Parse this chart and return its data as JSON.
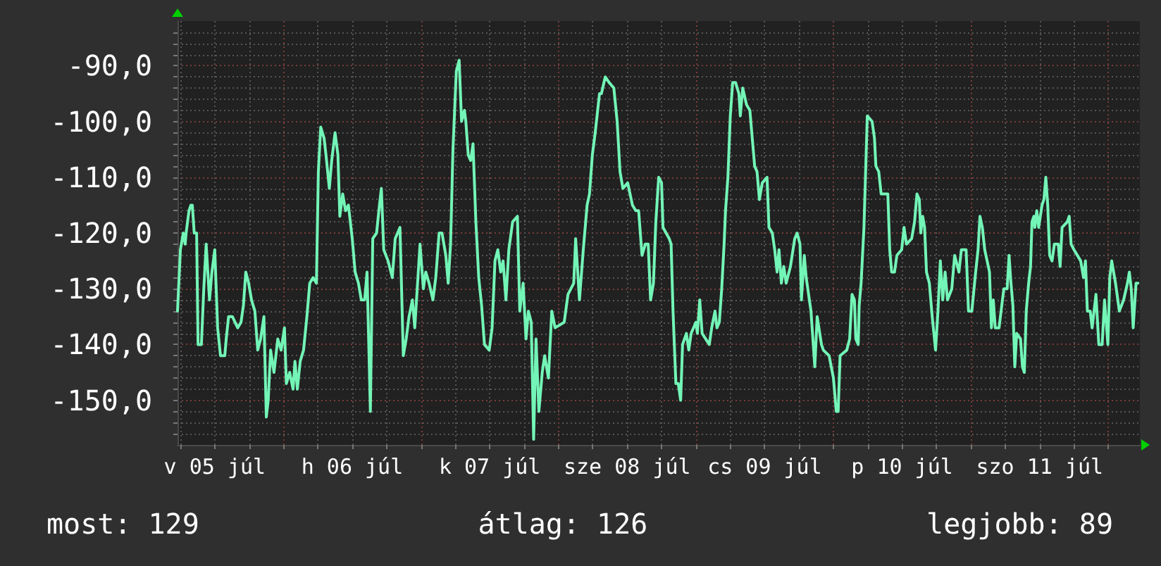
{
  "chart_data": {
    "type": "line",
    "color": "#73f5b7",
    "line_style": "solid",
    "grid": true,
    "xlim": [
      "--07-05T05:30",
      "--07-12T05:30"
    ],
    "ylim": [
      -158,
      -82
    ],
    "xticks": [
      {
        "value": "--07-05T06:00",
        "label": null
      },
      {
        "value": "--07-05T12:00",
        "label": "v 05 júl"
      },
      {
        "value": "--07-05T18:00",
        "label": null
      },
      {
        "value": "--07-06T00:00",
        "label": null
      },
      {
        "value": "--07-06T06:00",
        "label": null
      },
      {
        "value": "--07-06T12:00",
        "label": "h 06 júl"
      },
      {
        "value": "--07-06T18:00",
        "label": null
      },
      {
        "value": "--07-07T00:00",
        "label": null
      },
      {
        "value": "--07-07T06:00",
        "label": null
      },
      {
        "value": "--07-07T12:00",
        "label": "k 07 júl"
      },
      {
        "value": "--07-07T18:00",
        "label": null
      },
      {
        "value": "--07-08T00:00",
        "label": null
      },
      {
        "value": "--07-08T06:00",
        "label": null
      },
      {
        "value": "--07-08T12:00",
        "label": "sze 08 júl"
      },
      {
        "value": "--07-08T18:00",
        "label": null
      },
      {
        "value": "--07-09T00:00",
        "label": null
      },
      {
        "value": "--07-09T06:00",
        "label": null
      },
      {
        "value": "--07-09T12:00",
        "label": "cs 09 júl"
      },
      {
        "value": "--07-09T18:00",
        "label": null
      },
      {
        "value": "--07-10T00:00",
        "label": null
      },
      {
        "value": "--07-10T06:00",
        "label": null
      },
      {
        "value": "--07-10T12:00",
        "label": "p 10 júl"
      },
      {
        "value": "--07-10T18:00",
        "label": null
      },
      {
        "value": "--07-11T00:00",
        "label": null
      },
      {
        "value": "--07-11T06:00",
        "label": null
      },
      {
        "value": "--07-11T12:00",
        "label": "szo 11 júl"
      },
      {
        "value": "--07-11T18:00",
        "label": null
      },
      {
        "value": "--07-12T00:00",
        "label": null
      }
    ],
    "yticks": [
      {
        "value": -156,
        "label": null
      },
      {
        "value": -154,
        "label": null
      },
      {
        "value": -152,
        "label": null
      },
      {
        "value": -150,
        "label": "-150,0"
      },
      {
        "value": -148,
        "label": null
      },
      {
        "value": -146,
        "label": null
      },
      {
        "value": -144,
        "label": null
      },
      {
        "value": -142,
        "label": null
      },
      {
        "value": -140,
        "label": "-140,0"
      },
      {
        "value": -138,
        "label": null
      },
      {
        "value": -136,
        "label": null
      },
      {
        "value": -134,
        "label": null
      },
      {
        "value": -132,
        "label": null
      },
      {
        "value": -130,
        "label": "-130,0"
      },
      {
        "value": -128,
        "label": null
      },
      {
        "value": -126,
        "label": null
      },
      {
        "value": -124,
        "label": null
      },
      {
        "value": -122,
        "label": null
      },
      {
        "value": -120,
        "label": "-120,0"
      },
      {
        "value": -118,
        "label": null
      },
      {
        "value": -116,
        "label": null
      },
      {
        "value": -114,
        "label": null
      },
      {
        "value": -112,
        "label": null
      },
      {
        "value": -110,
        "label": "-110,0"
      },
      {
        "value": -108,
        "label": null
      },
      {
        "value": -106,
        "label": null
      },
      {
        "value": -104,
        "label": null
      },
      {
        "value": -102,
        "label": null
      },
      {
        "value": -100,
        "label": "-100,0"
      },
      {
        "value": -98,
        "label": null
      },
      {
        "value": -96,
        "label": null
      },
      {
        "value": -94,
        "label": null
      },
      {
        "value": -92,
        "label": null
      },
      {
        "value": -90,
        "label": "-90,0"
      },
      {
        "value": -88,
        "label": null
      },
      {
        "value": -86,
        "label": null
      },
      {
        "value": -84,
        "label": null
      }
    ],
    "x": [
      "--07-05T05:30",
      "--07-05T06:00",
      "--07-05T06:30",
      "--07-05T06:50",
      "--07-05T07:00",
      "--07-05T07:30",
      "--07-05T07:50",
      "--07-05T08:05",
      "--07-05T08:25",
      "--07-05T08:50",
      "--07-05T09:05",
      "--07-05T09:40",
      "--07-05T10:05",
      "--07-05T10:30",
      "--07-05T11:05",
      "--07-05T11:30",
      "--07-05T12:00",
      "--07-05T12:30",
      "--07-05T13:00",
      "--07-05T13:45",
      "--07-05T14:00",
      "--07-05T14:25",
      "--07-05T15:05",
      "--07-05T16:00",
      "--07-05T16:35",
      "--07-05T17:00",
      "--07-05T17:25",
      "--07-05T17:55",
      "--07-05T18:25",
      "--07-05T19:00",
      "--07-05T19:30",
      "--07-05T20:00",
      "--07-05T20:35",
      "--07-05T21:00",
      "--07-05T21:20",
      "--07-05T21:45",
      "--07-05T22:20",
      "--07-05T23:00",
      "--07-05T23:35",
      "--07-06T00:10",
      "--07-06T00:30",
      "--07-06T01:05",
      "--07-06T01:40",
      "--07-06T02:00",
      "--07-06T02:25",
      "--07-06T02:55",
      "--07-06T03:30",
      "--07-06T04:05",
      "--07-06T04:35",
      "--07-06T05:10",
      "--07-06T05:45",
      "--07-06T06:05",
      "--07-06T06:30",
      "--07-06T07:05",
      "--07-06T07:25",
      "--07-06T08:00",
      "--07-06T08:25",
      "--07-06T09:00",
      "--07-06T09:30",
      "--07-06T09:50",
      "--07-06T10:20",
      "--07-06T10:50",
      "--07-06T11:20",
      "--07-06T12:00",
      "--07-06T12:30",
      "--07-06T13:05",
      "--07-06T13:35",
      "--07-06T14:10",
      "--07-06T14:35",
      "--07-06T15:10",
      "--07-06T15:35",
      "--07-06T16:15",
      "--07-06T16:45",
      "--07-06T17:05",
      "--07-06T17:30",
      "--07-06T18:15",
      "--07-06T19:00",
      "--07-06T19:30",
      "--07-06T20:20",
      "--07-06T20:55",
      "--07-06T21:25",
      "--07-06T21:55",
      "--07-06T22:30",
      "--07-06T22:55",
      "--07-06T23:50",
      "--07-07T00:25",
      "--07-07T00:50",
      "--07-07T01:25",
      "--07-07T02:05",
      "--07-07T02:35",
      "--07-07T03:10",
      "--07-07T03:40",
      "--07-07T04:20",
      "--07-07T04:45",
      "--07-07T05:10",
      "--07-07T05:35",
      "--07-07T06:10",
      "--07-07T06:40",
      "--07-07T07:05",
      "--07-07T07:35",
      "--07-07T07:50",
      "--07-07T08:15",
      "--07-07T08:40",
      "--07-07T09:05",
      "--07-07T09:35",
      "--07-07T10:05",
      "--07-07T10:35",
      "--07-07T11:05",
      "--07-07T11:55",
      "--07-07T12:25",
      "--07-07T12:55",
      "--07-07T13:25",
      "--07-07T13:55",
      "--07-07T14:20",
      "--07-07T14:50",
      "--07-07T15:20",
      "--07-07T16:00",
      "--07-07T16:50",
      "--07-07T17:15",
      "--07-07T17:50",
      "--07-07T18:20",
      "--07-07T18:45",
      "--07-07T19:15",
      "--07-07T19:40",
      "--07-07T20:05",
      "--07-07T20:35",
      "--07-07T21:10",
      "--07-07T21:35",
      "--07-07T22:15",
      "--07-07T22:50",
      "--07-07T23:25",
      "--07-08T01:00",
      "--07-08T01:40",
      "--07-08T02:40",
      "--07-08T03:00",
      "--07-08T03:40",
      "--07-08T04:20",
      "--07-08T05:00",
      "--07-08T05:25",
      "--07-08T05:55",
      "--07-08T06:25",
      "--07-08T07:10",
      "--07-08T07:30",
      "--07-08T08:10",
      "--07-08T08:50",
      "--07-08T09:40",
      "--07-08T10:15",
      "--07-08T10:45",
      "--07-08T11:15",
      "--07-08T12:05",
      "--07-08T12:55",
      "--07-08T13:30",
      "--07-08T14:00",
      "--07-08T14:35",
      "--07-08T15:10",
      "--07-08T15:40",
      "--07-08T16:05",
      "--07-08T16:35",
      "--07-08T17:00",
      "--07-08T17:30",
      "--07-08T18:00",
      "--07-08T18:15",
      "--07-08T19:20",
      "--07-08T19:40",
      "--07-08T20:00",
      "--07-08T20:30",
      "--07-08T20:55",
      "--07-08T21:20",
      "--07-08T21:40",
      "--07-08T22:20",
      "--07-08T22:45",
      "--07-08T23:10",
      "--07-09T00:00",
      "--07-09T00:15",
      "--07-09T00:40",
      "--07-09T01:05",
      "--07-09T02:20",
      "--07-09T02:45",
      "--07-09T03:20",
      "--07-09T03:40",
      "--07-09T04:05",
      "--07-09T04:30",
      "--07-09T04:55",
      "--07-09T05:10",
      "--07-09T05:35",
      "--07-09T06:00",
      "--07-09T06:25",
      "--07-09T06:55",
      "--07-09T07:30",
      "--07-09T07:45",
      "--07-09T08:10",
      "--07-09T08:50",
      "--07-09T09:25",
      "--07-09T09:50",
      "--07-09T10:15",
      "--07-09T10:40",
      "--07-09T11:05",
      "--07-09T11:35",
      "--07-09T12:25",
      "--07-09T12:45",
      "--07-09T13:20",
      "--07-09T13:45",
      "--07-09T14:10",
      "--07-09T14:30",
      "--07-09T14:55",
      "--07-09T15:20",
      "--07-09T15:45",
      "--07-09T16:30",
      "--07-09T17:15",
      "--07-09T17:40",
      "--07-09T18:10",
      "--07-09T18:25",
      "--07-09T18:55",
      "--07-09T19:15",
      "--07-09T20:05",
      "--07-09T20:45",
      "--07-09T21:10",
      "--07-09T21:55",
      "--07-09T22:15",
      "--07-09T23:15",
      "--07-10T00:00",
      "--07-10T00:30",
      "--07-10T00:50",
      "--07-10T01:10",
      "--07-10T02:20",
      "--07-10T02:50",
      "--07-10T03:15",
      "--07-10T03:40",
      "--07-10T03:55",
      "--07-10T04:20",
      "--07-10T04:30",
      "--07-10T04:50",
      "--07-10T05:20",
      "--07-10T05:55",
      "--07-10T06:45",
      "--07-10T07:10",
      "--07-10T07:25",
      "--07-10T07:55",
      "--07-10T08:20",
      "--07-10T09:30",
      "--07-10T09:50",
      "--07-10T10:10",
      "--07-10T10:40",
      "--07-10T11:05",
      "--07-10T11:55",
      "--07-10T12:20",
      "--07-10T12:45",
      "--07-10T13:40",
      "--07-10T14:10",
      "--07-10T14:35",
      "--07-10T15:00",
      "--07-10T15:15",
      "--07-10T15:35",
      "--07-10T15:55",
      "--07-10T16:15",
      "--07-10T16:45",
      "--07-10T17:15",
      "--07-10T17:50",
      "--07-10T18:15",
      "--07-10T18:40",
      "--07-10T19:05",
      "--07-10T19:30",
      "--07-10T19:55",
      "--07-10T20:40",
      "--07-10T21:10",
      "--07-10T21:55",
      "--07-10T22:20",
      "--07-10T23:10",
      "--07-10T23:35",
      "--07-11T00:10",
      "--07-11T00:50",
      "--07-11T01:15",
      "--07-11T01:35",
      "--07-11T02:00",
      "--07-11T02:25",
      "--07-11T03:15",
      "--07-11T03:35",
      "--07-11T03:55",
      "--07-11T04:15",
      "--07-11T04:55",
      "--07-11T05:45",
      "--07-11T06:20",
      "--07-11T06:40",
      "--07-11T07:00",
      "--07-11T07:20",
      "--07-11T07:40",
      "--07-11T08:00",
      "--07-11T08:40",
      "--07-11T09:00",
      "--07-11T09:20",
      "--07-11T09:40",
      "--07-11T10:05",
      "--07-11T10:25",
      "--07-11T10:40",
      "--07-11T11:00",
      "--07-11T11:10",
      "--07-11T11:30",
      "--07-11T11:50",
      "--07-11T12:25",
      "--07-11T12:45",
      "--07-11T13:05",
      "--07-11T13:25",
      "--07-11T13:45",
      "--07-11T14:10",
      "--07-11T14:35",
      "--07-11T15:15",
      "--07-11T15:35",
      "--07-11T15:55",
      "--07-11T16:50",
      "--07-11T17:10",
      "--07-11T17:30",
      "--07-11T18:00",
      "--07-11T19:10",
      "--07-11T19:40",
      "--07-11T20:00",
      "--07-11T20:20",
      "--07-11T20:50",
      "--07-11T21:10",
      "--07-11T21:50",
      "--07-11T22:20",
      "--07-11T22:55",
      "--07-11T23:20",
      "--07-11T23:55",
      "--07-12T00:15",
      "--07-12T00:35",
      "--07-12T01:15",
      "--07-12T01:55",
      "--07-12T02:40",
      "--07-12T03:20",
      "--07-12T03:40",
      "--07-12T04:00",
      "--07-12T04:20",
      "--07-12T04:50",
      "--07-12T05:10"
    ],
    "values": [
      -134,
      -123,
      -120,
      -122,
      -120,
      -116,
      -115,
      -115,
      -120,
      -120,
      -140,
      -140,
      -130,
      -122,
      -132,
      -127,
      -123,
      -137,
      -142,
      -142,
      -139,
      -135,
      -135,
      -137,
      -136,
      -133,
      -127,
      -129,
      -132,
      -134,
      -141,
      -139,
      -135,
      -153,
      -150,
      -141,
      -145,
      -139,
      -141,
      -137,
      -147,
      -145,
      -148,
      -143,
      -148,
      -143,
      -141,
      -135,
      -129,
      -128,
      -129,
      -109,
      -101,
      -103,
      -106,
      -112,
      -107,
      -102,
      -106,
      -117,
      -113,
      -116,
      -115,
      -121,
      -127,
      -129,
      -132,
      -132,
      -127,
      -152,
      -121,
      -120,
      -115,
      -112,
      -123,
      -125,
      -128,
      -121,
      -119,
      -142,
      -139,
      -135,
      -132,
      -137,
      -122,
      -130,
      -127,
      -129,
      -132,
      -128,
      -120,
      -120,
      -124,
      -129,
      -122,
      -105,
      -91,
      -89,
      -100,
      -98,
      -100,
      -106,
      -107,
      -104,
      -118,
      -128,
      -133,
      -140,
      -141,
      -137,
      -125,
      -123,
      -127,
      -125,
      -132,
      -123,
      -118,
      -117,
      -134,
      -129,
      -139,
      -134,
      -136,
      -157,
      -139,
      -152,
      -145,
      -142,
      -146,
      -134,
      -137,
      -136,
      -131,
      -129,
      -121,
      -132,
      -123,
      -115,
      -113,
      -106,
      -102,
      -95,
      -95,
      -92,
      -93,
      -94,
      -100,
      -109,
      -112,
      -111,
      -115,
      -116,
      -116,
      -124,
      -122,
      -122,
      -132,
      -129,
      -118,
      -110,
      -111,
      -119,
      -121,
      -122,
      -134,
      -147,
      -147,
      -150,
      -140,
      -138,
      -141,
      -138,
      -136,
      -138,
      -132,
      -138,
      -140,
      -137,
      -134,
      -137,
      -136,
      -130,
      -122,
      -116,
      -110,
      -99,
      -93,
      -93,
      -95,
      -99,
      -94,
      -97,
      -98,
      -103,
      -108,
      -109,
      -114,
      -111,
      -110,
      -119,
      -120,
      -123,
      -127,
      -123,
      -129,
      -126,
      -129,
      -126,
      -121,
      -120,
      -122,
      -132,
      -124,
      -128,
      -134,
      -144,
      -135,
      -140,
      -141,
      -142,
      -146,
      -152,
      -152,
      -142,
      -141,
      -139,
      -131,
      -132,
      -139,
      -140,
      -133,
      -129,
      -119,
      -99,
      -100,
      -103,
      -108,
      -109,
      -113,
      -113,
      -123,
      -127,
      -127,
      -124,
      -123,
      -119,
      -122,
      -121,
      -118,
      -113,
      -114,
      -120,
      -117,
      -119,
      -127,
      -129,
      -135,
      -141,
      -134,
      -125,
      -132,
      -127,
      -132,
      -130,
      -124,
      -127,
      -123,
      -123,
      -134,
      -134,
      -127,
      -123,
      -117,
      -119,
      -123,
      -127,
      -137,
      -132,
      -137,
      -137,
      -130,
      -130,
      -124,
      -129,
      -133,
      -144,
      -138,
      -139,
      -144,
      -145,
      -134,
      -129,
      -126,
      -118,
      -117,
      -119,
      -116,
      -119,
      -115,
      -114,
      -110,
      -115,
      -124,
      -125,
      -122,
      -122,
      -126,
      -119,
      -118,
      -117,
      -122,
      -123,
      -125,
      -128,
      -125,
      -134,
      -134,
      -137,
      -131,
      -140,
      -140,
      -132,
      -140,
      -128,
      -125,
      -129,
      -134,
      -132,
      -129,
      -127,
      -130,
      -137,
      -129,
      -129
    ],
    "annotations": [
      "most: 129",
      "átlag: 126",
      "legjobb: 89"
    ]
  }
}
